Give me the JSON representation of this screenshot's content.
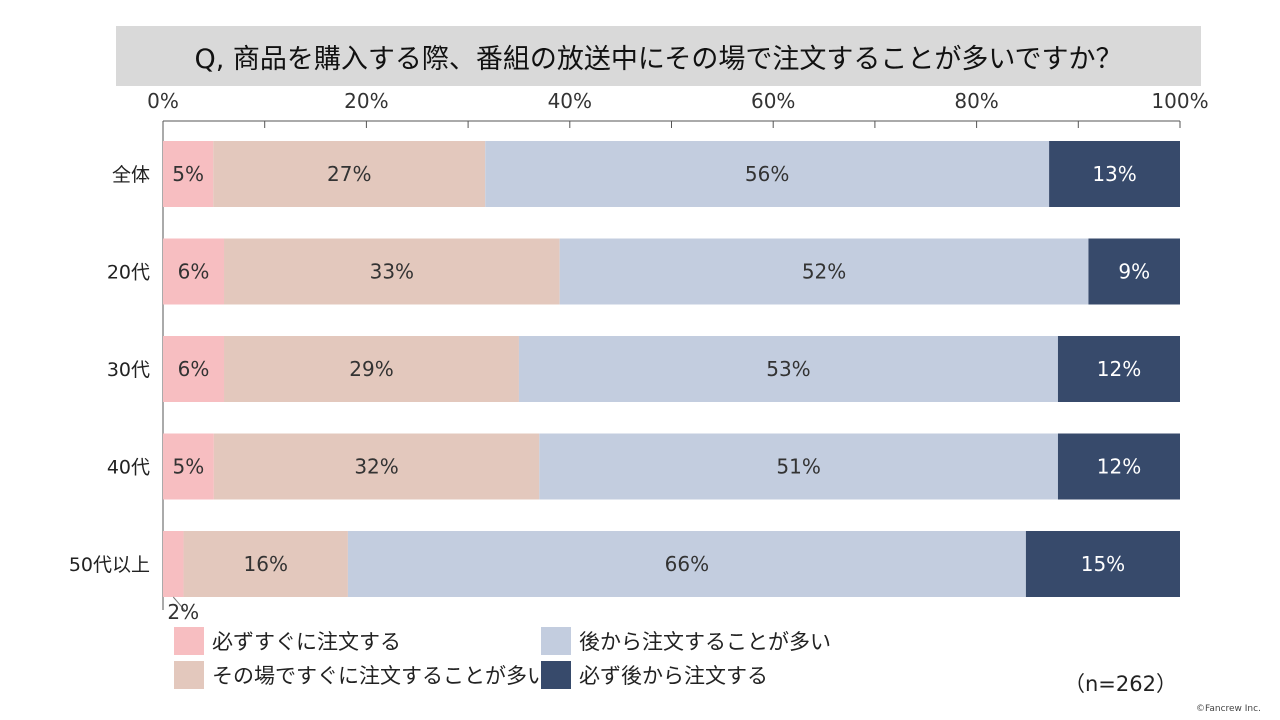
{
  "title": "Q, 商品を購入する際、番組の放送中にその場で注文することが多いですか？",
  "sample_note": "（n=262）",
  "copyright": "©Fancrew Inc.",
  "chart_data": {
    "type": "bar",
    "orientation": "horizontal",
    "stacked": true,
    "percent_scale": true,
    "categories": [
      "全体",
      "20代",
      "30代",
      "40代",
      "50代以上"
    ],
    "series": [
      {
        "name": "必ずすぐに注文する",
        "color": "#f7bec1",
        "values": [
          5,
          6,
          6,
          5,
          2
        ],
        "labels": [
          "5%",
          "6%",
          "6%",
          "5%",
          "2%"
        ]
      },
      {
        "name": "その場ですぐに注文することが多い",
        "color": "#e3c8bd",
        "values": [
          27,
          33,
          29,
          32,
          16
        ],
        "labels": [
          "27%",
          "33%",
          "29%",
          "32%",
          "16%"
        ]
      },
      {
        "name": "後から注文することが多い",
        "color": "#c3cddf",
        "values": [
          56,
          52,
          53,
          51,
          66
        ],
        "labels": [
          "56%",
          "52%",
          "53%",
          "51%",
          "66%"
        ]
      },
      {
        "name": "必ず後から注文する",
        "color": "#374a6b",
        "values": [
          13,
          9,
          12,
          12,
          15
        ],
        "labels": [
          "13%",
          "9%",
          "12%",
          "12%",
          "15%"
        ]
      }
    ],
    "xlim": [
      0,
      100
    ],
    "xticks": [
      "0%",
      "20%",
      "40%",
      "60%",
      "80%",
      "100%"
    ],
    "legend_position": "bottom",
    "grid": false
  }
}
